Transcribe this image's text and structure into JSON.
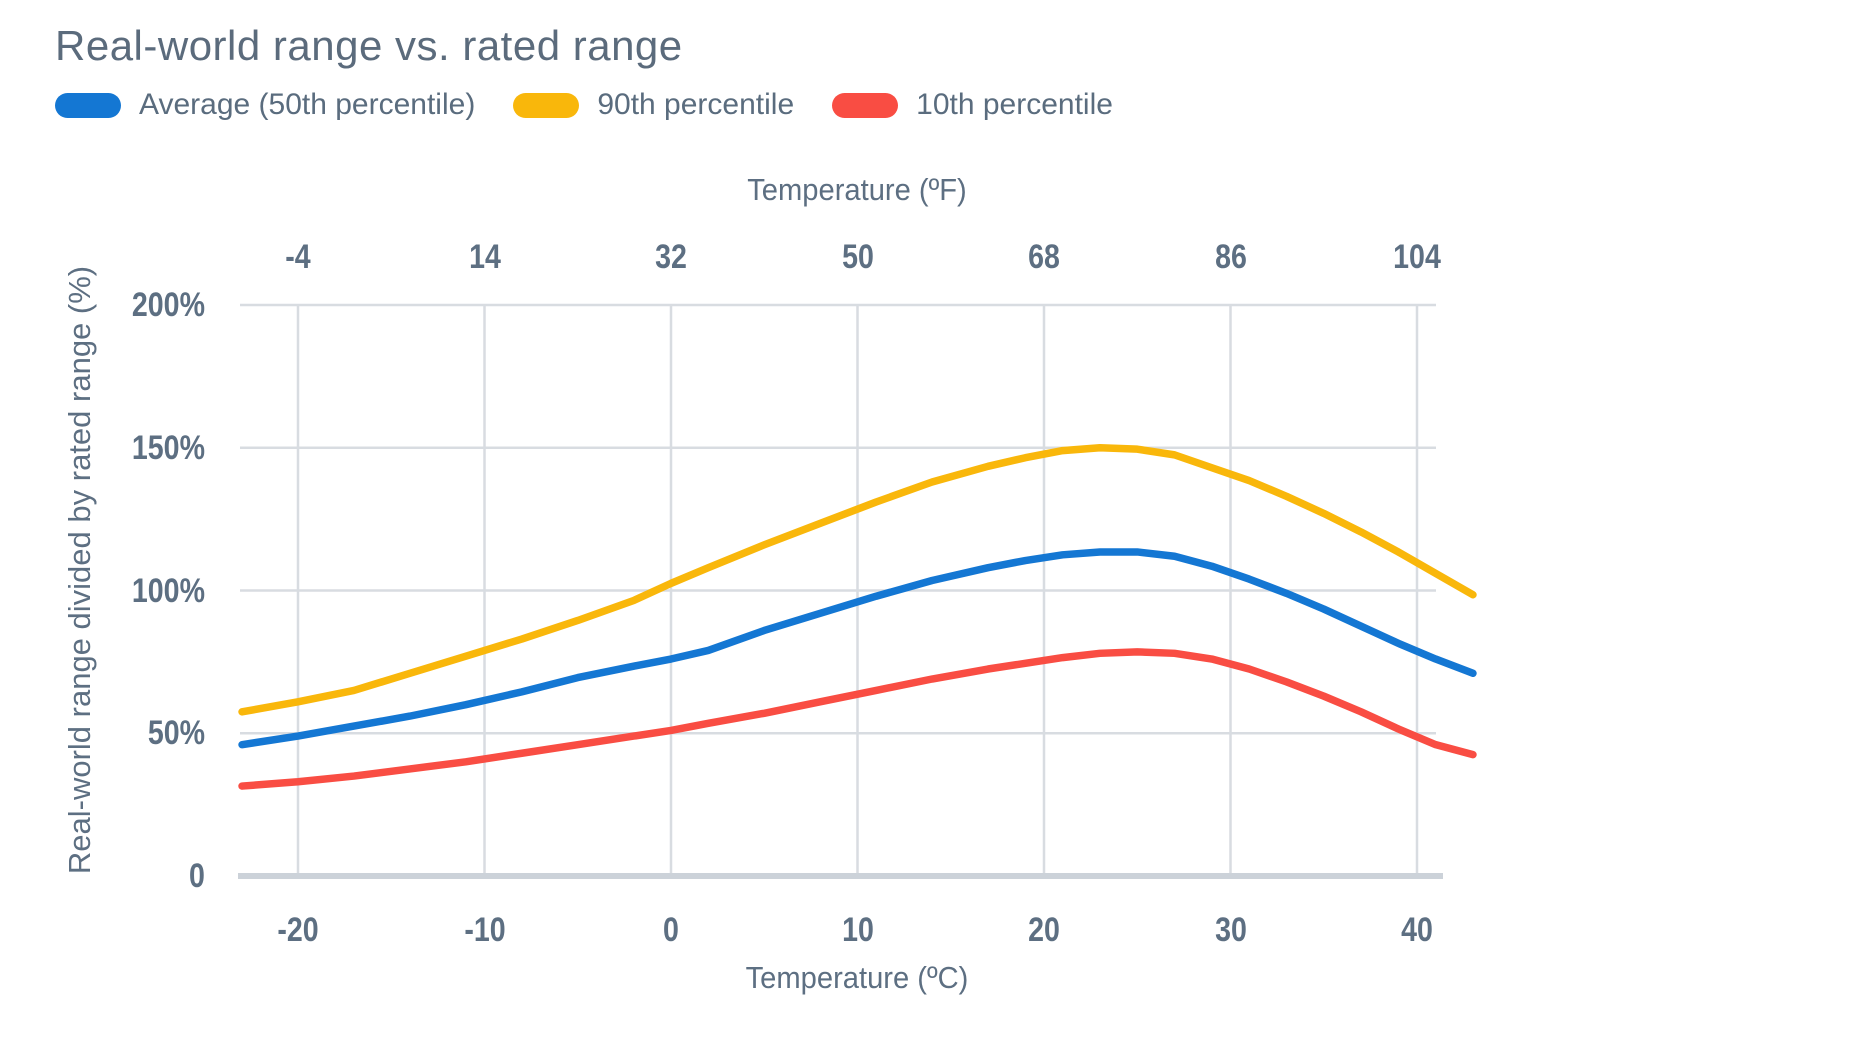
{
  "header": {
    "title": "Real-world range vs. rated range"
  },
  "legend": [
    {
      "label": "Average (50th percentile)",
      "color": "#1477d3"
    },
    {
      "label": "90th percentile",
      "color": "#f9b70b"
    },
    {
      "label": "10th percentile",
      "color": "#f94d43"
    }
  ],
  "colors": {
    "gridline": "#d8dce1",
    "baseline": "#ccd2d9",
    "tick_text": "#5d6f82",
    "title_text": "#5b6b7c"
  },
  "chart_data": {
    "type": "line",
    "title": "Real-world range vs. rated range",
    "legend_position": "top",
    "grid": true,
    "x_axis_bottom": {
      "label": "Temperature (ºC)",
      "tick_values": [
        -20,
        -10,
        0,
        10,
        20,
        30,
        40
      ],
      "tick_labels": [
        "-20",
        "-10",
        "0",
        "10",
        "20",
        "30",
        "40"
      ]
    },
    "x_axis_top": {
      "label": "Temperature (ºF)",
      "tick_values": [
        -20,
        -10,
        0,
        10,
        20,
        30,
        40
      ],
      "tick_labels": [
        "-4",
        "14",
        "32",
        "50",
        "68",
        "86",
        "104"
      ]
    },
    "y_axis": {
      "label": "Real-world range divided by rated range (%)",
      "tick_values": [
        0,
        50,
        100,
        150,
        200
      ],
      "tick_labels": [
        "0",
        "50%",
        "100%",
        "150%",
        "200%"
      ],
      "range": [
        0,
        200
      ]
    },
    "x_range_celsius": [
      -23,
      43
    ],
    "series": [
      {
        "name": "90th percentile",
        "color": "#f9b70b",
        "points": [
          [
            -23,
            57.5
          ],
          [
            -20,
            61
          ],
          [
            -17,
            65
          ],
          [
            -14,
            71
          ],
          [
            -11,
            77
          ],
          [
            -8,
            83
          ],
          [
            -5,
            89.5
          ],
          [
            -2,
            96.5
          ],
          [
            0,
            102.5
          ],
          [
            2,
            108
          ],
          [
            5,
            116
          ],
          [
            8,
            123.5
          ],
          [
            11,
            131
          ],
          [
            14,
            138
          ],
          [
            17,
            143.5
          ],
          [
            19,
            146.5
          ],
          [
            21,
            149
          ],
          [
            23,
            150
          ],
          [
            25,
            149.5
          ],
          [
            27,
            147.5
          ],
          [
            29,
            143
          ],
          [
            31,
            138.5
          ],
          [
            33,
            133
          ],
          [
            35,
            127
          ],
          [
            37,
            120.5
          ],
          [
            39,
            113.5
          ],
          [
            41,
            106
          ],
          [
            43,
            98.5
          ]
        ]
      },
      {
        "name": "Average (50th percentile)",
        "color": "#1477d3",
        "points": [
          [
            -23,
            46
          ],
          [
            -20,
            49
          ],
          [
            -17,
            52.5
          ],
          [
            -14,
            56
          ],
          [
            -11,
            60
          ],
          [
            -8,
            64.5
          ],
          [
            -5,
            69.5
          ],
          [
            -2,
            73.5
          ],
          [
            0,
            76
          ],
          [
            2,
            79
          ],
          [
            5,
            86
          ],
          [
            8,
            92
          ],
          [
            11,
            98
          ],
          [
            14,
            103.5
          ],
          [
            17,
            108
          ],
          [
            19,
            110.5
          ],
          [
            21,
            112.5
          ],
          [
            23,
            113.5
          ],
          [
            25,
            113.5
          ],
          [
            27,
            112
          ],
          [
            29,
            108.5
          ],
          [
            31,
            104
          ],
          [
            33,
            99
          ],
          [
            35,
            93.5
          ],
          [
            37,
            87.5
          ],
          [
            39,
            81.5
          ],
          [
            41,
            76
          ],
          [
            43,
            71
          ]
        ]
      },
      {
        "name": "10th percentile",
        "color": "#f94d43",
        "points": [
          [
            -23,
            31.5
          ],
          [
            -20,
            33
          ],
          [
            -17,
            35
          ],
          [
            -14,
            37.5
          ],
          [
            -11,
            40
          ],
          [
            -8,
            43
          ],
          [
            -5,
            46
          ],
          [
            -2,
            49
          ],
          [
            0,
            51
          ],
          [
            2,
            53.5
          ],
          [
            5,
            57
          ],
          [
            8,
            61
          ],
          [
            11,
            65
          ],
          [
            14,
            69
          ],
          [
            17,
            72.5
          ],
          [
            19,
            74.5
          ],
          [
            21,
            76.5
          ],
          [
            23,
            78
          ],
          [
            25,
            78.5
          ],
          [
            27,
            78
          ],
          [
            29,
            76
          ],
          [
            31,
            72.5
          ],
          [
            33,
            68
          ],
          [
            35,
            63
          ],
          [
            37,
            57.5
          ],
          [
            39,
            51.5
          ],
          [
            41,
            46
          ],
          [
            43,
            42.5
          ]
        ]
      }
    ]
  }
}
